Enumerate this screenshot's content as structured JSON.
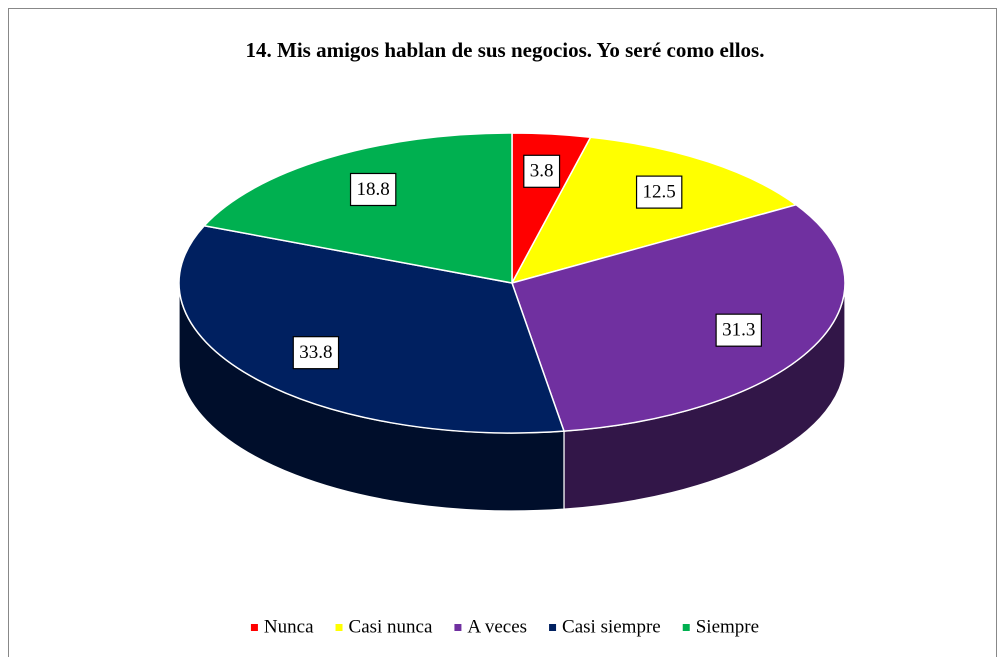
{
  "chart_data": {
    "type": "pie",
    "title": "14. Mis amigos hablan de sus negocios. Yo seré como ellos.",
    "categories": [
      "Nunca",
      "Casi nunca",
      "A veces",
      "Casi siempre",
      "Siempre"
    ],
    "values": [
      3.8,
      12.5,
      31.3,
      33.8,
      18.8
    ],
    "colors": [
      "#ff0000",
      "#ffff00",
      "#7030a0",
      "#002060",
      "#00b050"
    ],
    "legend": "bottom",
    "three_d": true
  }
}
